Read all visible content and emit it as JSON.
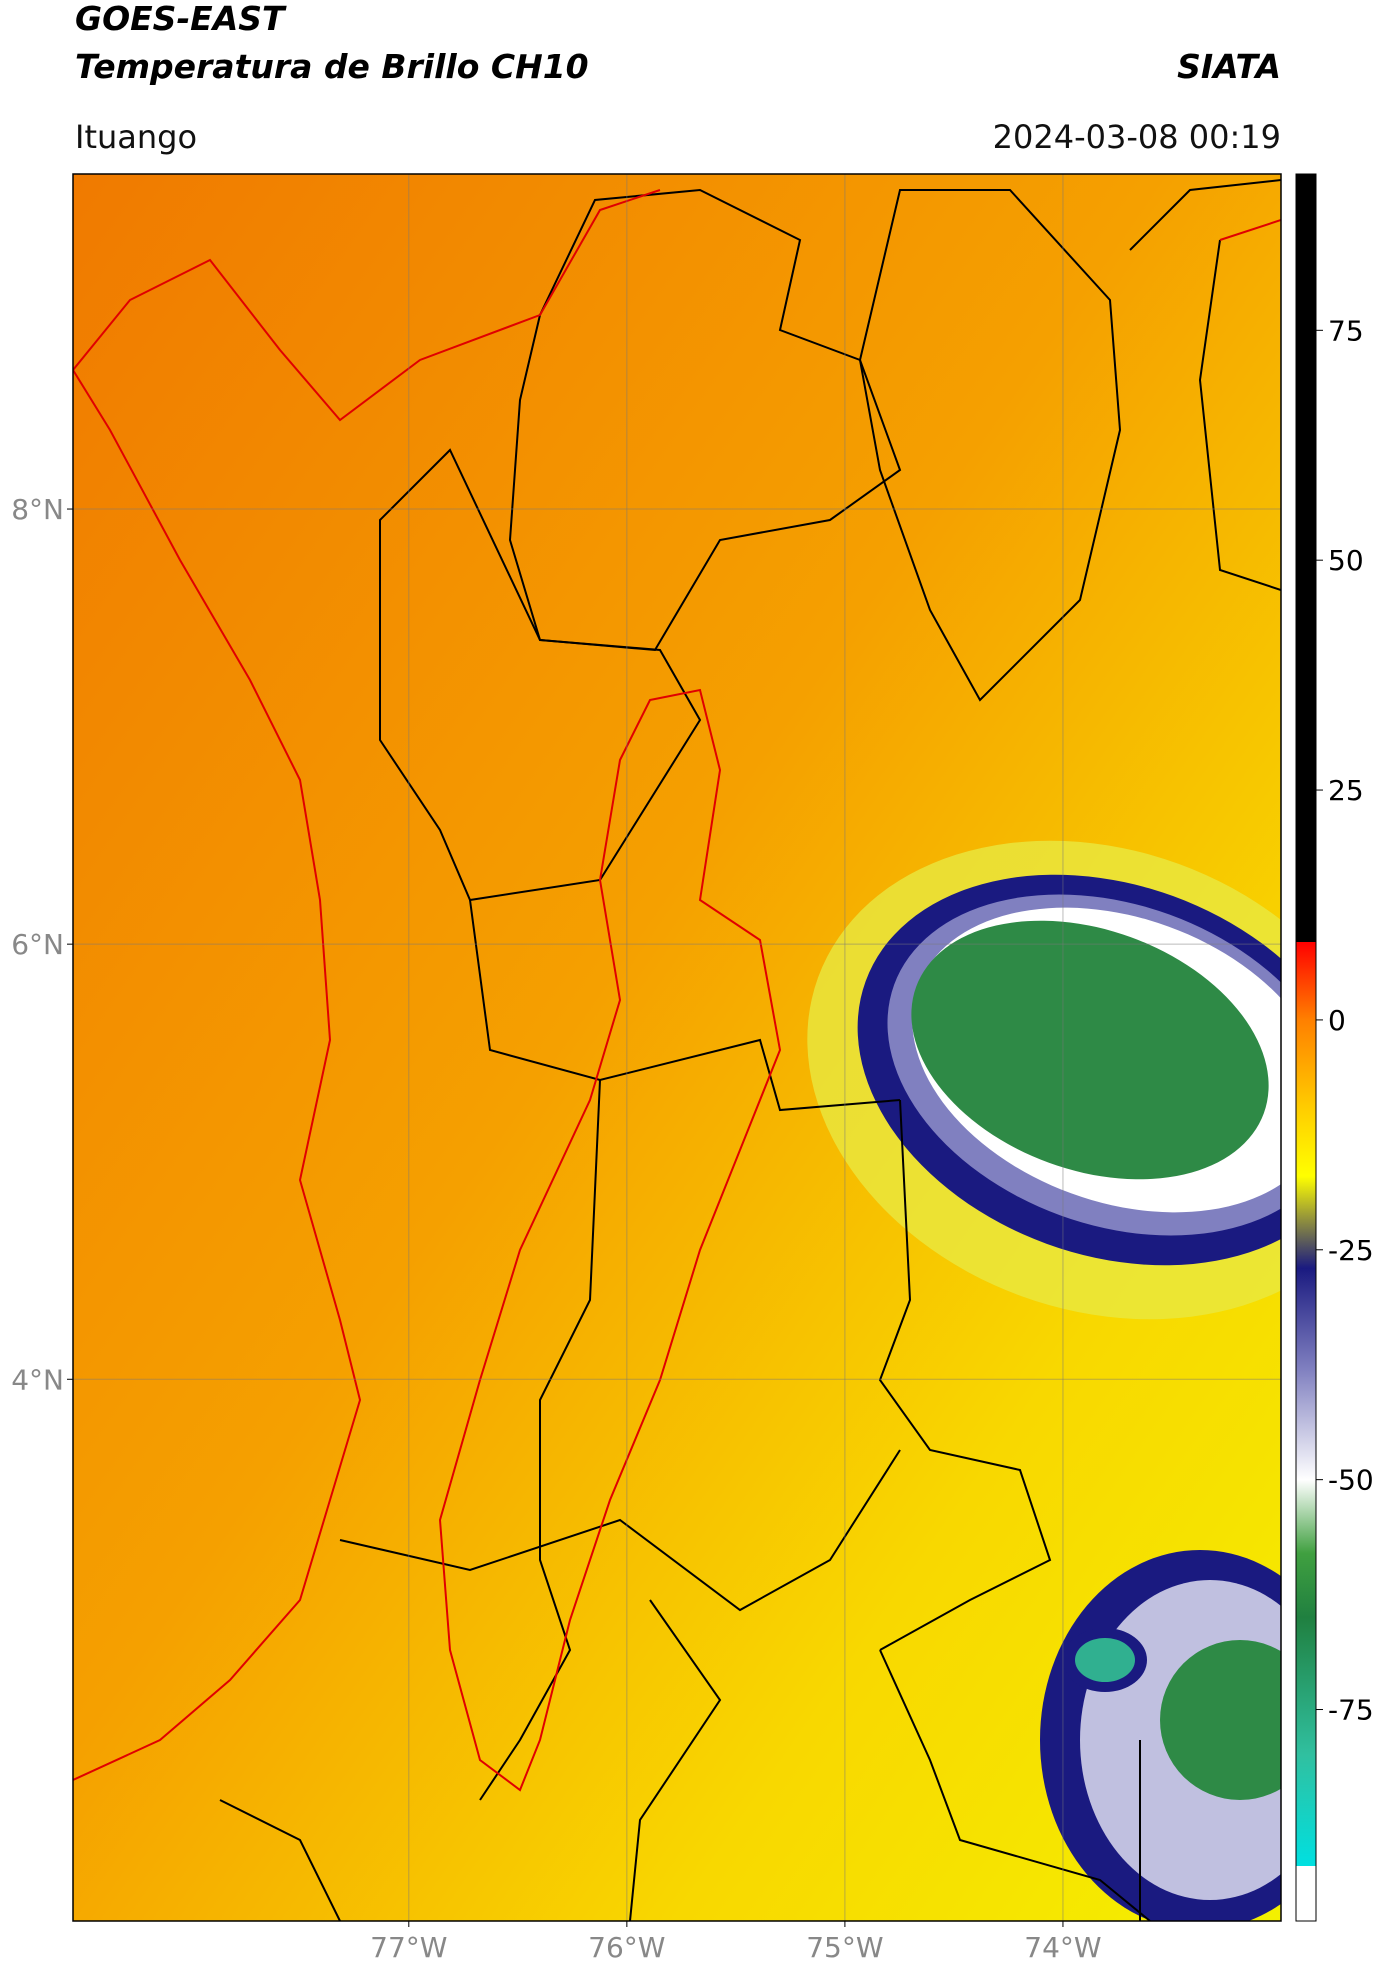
{
  "header": {
    "title": "GOES-EAST",
    "subtitle": "Temperatura de Brillo CH10",
    "brand": "SIATA",
    "location": "Ituango",
    "datetime": "2024-03-08 00:19"
  },
  "map": {
    "lon_range": [
      -78.54,
      -73.0
    ],
    "lat_range": [
      1.51,
      9.54
    ],
    "lat_ticks": [
      {
        "value": 8,
        "label": "8°N"
      },
      {
        "value": 6,
        "label": "6°N"
      },
      {
        "value": 4,
        "label": "4°N"
      }
    ],
    "lon_ticks": [
      {
        "value": -77,
        "label": "77°W"
      },
      {
        "value": -76,
        "label": "76°W"
      },
      {
        "value": -75,
        "label": "75°W"
      },
      {
        "value": -74,
        "label": "74°W"
      }
    ],
    "grid": true
  },
  "colorbar": {
    "range": [
      -98,
      92
    ],
    "ticks": [
      75,
      50,
      25,
      0,
      -25,
      -50,
      -75
    ],
    "colors": [
      {
        "value": 92,
        "color": "#000000"
      },
      {
        "value": 8.5,
        "color": "#000000"
      },
      {
        "value": 8.5,
        "color": "#ff0000"
      },
      {
        "value": 0,
        "color": "#ff8000"
      },
      {
        "value": -10,
        "color": "#ffd000"
      },
      {
        "value": -17,
        "color": "#ffff00"
      },
      {
        "value": -22,
        "color": "#8a8a40"
      },
      {
        "value": -27,
        "color": "#1a1a80"
      },
      {
        "value": -38,
        "color": "#8080c0"
      },
      {
        "value": -50,
        "color": "#ffffff"
      },
      {
        "value": -58,
        "color": "#40a040"
      },
      {
        "value": -65,
        "color": "#208040"
      },
      {
        "value": -80,
        "color": "#30c0a0"
      },
      {
        "value": -92,
        "color": "#00e0e0"
      },
      {
        "value": -92,
        "color": "#ffffff"
      },
      {
        "value": -98,
        "color": "#ffffff"
      }
    ]
  }
}
